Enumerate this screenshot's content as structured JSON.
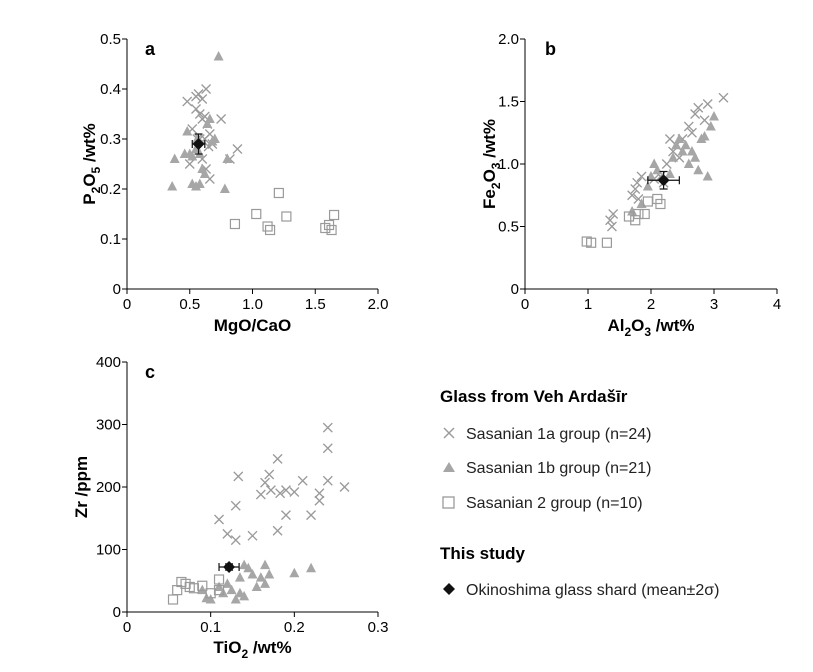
{
  "colors": {
    "cross": "#9a9a9a",
    "triangle": "#a6a6a6",
    "square": "#9a9a9a",
    "mean": "#111111",
    "axis": "#000000"
  },
  "legend": {
    "title1": "Glass from Veh Ardašīr",
    "title2": "This study",
    "items": [
      {
        "label": "Sasanian 1a group (n=24)",
        "marker": "cross"
      },
      {
        "label": "Sasanian 1b group (n=21)",
        "marker": "triangle"
      },
      {
        "label": "Sasanian 2 group (n=10)",
        "marker": "square"
      },
      {
        "label": "Okinoshima glass shard (mean±2σ)",
        "marker": "diamond"
      }
    ]
  },
  "chart_data": [
    {
      "panel": "a",
      "type": "scatter",
      "xlabel": {
        "main": "MgO/CaO",
        "sub": ""
      },
      "ylabel": {
        "parts": [
          "P",
          "2",
          "O",
          "5",
          " /wt%"
        ]
      },
      "xlim": [
        0,
        2.0
      ],
      "ylim": [
        0,
        0.5
      ],
      "xticks": [
        "0",
        "0.5",
        "1.0",
        "1.5",
        "2.0"
      ],
      "yticks": [
        "0",
        "0.1",
        "0.2",
        "0.3",
        "0.4",
        "0.5"
      ],
      "xtick_values": [
        0,
        0.5,
        1.0,
        1.5,
        2.0
      ],
      "ytick_values": [
        0,
        0.1,
        0.2,
        0.3,
        0.4,
        0.5
      ],
      "series": [
        {
          "marker": "cross",
          "points": [
            [
              0.48,
              0.375
            ],
            [
              0.55,
              0.385
            ],
            [
              0.57,
              0.39
            ],
            [
              0.6,
              0.38
            ],
            [
              0.62,
              0.345
            ],
            [
              0.63,
              0.4
            ],
            [
              0.55,
              0.36
            ],
            [
              0.58,
              0.35
            ],
            [
              0.6,
              0.34
            ],
            [
              0.64,
              0.33
            ],
            [
              0.66,
              0.31
            ],
            [
              0.52,
              0.32
            ],
            [
              0.56,
              0.3
            ],
            [
              0.58,
              0.3
            ],
            [
              0.62,
              0.3
            ],
            [
              0.65,
              0.285
            ],
            [
              0.68,
              0.29
            ],
            [
              0.6,
              0.26
            ],
            [
              0.5,
              0.25
            ],
            [
              0.63,
              0.24
            ],
            [
              0.66,
              0.22
            ],
            [
              0.82,
              0.26
            ],
            [
              0.88,
              0.28
            ],
            [
              0.75,
              0.34
            ]
          ]
        },
        {
          "marker": "triangle",
          "points": [
            [
              0.73,
              0.465
            ],
            [
              0.48,
              0.315
            ],
            [
              0.38,
              0.26
            ],
            [
              0.46,
              0.27
            ],
            [
              0.5,
              0.27
            ],
            [
              0.52,
              0.265
            ],
            [
              0.55,
              0.28
            ],
            [
              0.56,
              0.3
            ],
            [
              0.58,
              0.27
            ],
            [
              0.6,
              0.24
            ],
            [
              0.62,
              0.23
            ],
            [
              0.64,
              0.33
            ],
            [
              0.66,
              0.34
            ],
            [
              0.68,
              0.295
            ],
            [
              0.7,
              0.3
            ],
            [
              0.52,
              0.21
            ],
            [
              0.55,
              0.205
            ],
            [
              0.58,
              0.21
            ],
            [
              0.36,
              0.205
            ],
            [
              0.78,
              0.2
            ],
            [
              0.8,
              0.26
            ]
          ]
        },
        {
          "marker": "square",
          "points": [
            [
              0.86,
              0.13
            ],
            [
              1.03,
              0.15
            ],
            [
              1.12,
              0.125
            ],
            [
              1.14,
              0.118
            ],
            [
              1.21,
              0.192
            ],
            [
              1.27,
              0.145
            ],
            [
              1.58,
              0.122
            ],
            [
              1.61,
              0.128
            ],
            [
              1.63,
              0.118
            ],
            [
              1.65,
              0.148
            ]
          ]
        }
      ],
      "mean": {
        "x": 0.57,
        "y": 0.29,
        "xerr": 0.05,
        "yerr": 0.02
      }
    },
    {
      "panel": "b",
      "type": "scatter",
      "xlabel": {
        "parts": [
          "Al",
          "2",
          "O",
          "3",
          " /wt%"
        ]
      },
      "ylabel": {
        "parts": [
          "Fe",
          "2",
          "O",
          "3",
          " /wt%"
        ]
      },
      "xlim": [
        0,
        4
      ],
      "ylim": [
        0,
        2.0
      ],
      "xticks": [
        "0",
        "1",
        "2",
        "3",
        "4"
      ],
      "yticks": [
        "0",
        "0.5",
        "1.0",
        "1.5",
        "2.0"
      ],
      "xtick_values": [
        0,
        1,
        2,
        3,
        4
      ],
      "ytick_values": [
        0,
        0.5,
        1.0,
        1.5,
        2.0
      ],
      "series": [
        {
          "marker": "cross",
          "points": [
            [
              1.35,
              0.55
            ],
            [
              1.4,
              0.6
            ],
            [
              1.38,
              0.5
            ],
            [
              1.7,
              0.75
            ],
            [
              1.75,
              0.8
            ],
            [
              1.78,
              0.85
            ],
            [
              1.85,
              0.9
            ],
            [
              1.8,
              0.72
            ],
            [
              2.05,
              0.88
            ],
            [
              2.15,
              0.9
            ],
            [
              2.2,
              0.85
            ],
            [
              2.25,
              1.0
            ],
            [
              2.3,
              1.2
            ],
            [
              2.35,
              1.1
            ],
            [
              2.4,
              1.15
            ],
            [
              2.45,
              1.05
            ],
            [
              2.5,
              1.2
            ],
            [
              2.6,
              1.3
            ],
            [
              2.65,
              1.25
            ],
            [
              2.7,
              1.4
            ],
            [
              2.75,
              1.45
            ],
            [
              2.85,
              1.35
            ],
            [
              2.9,
              1.48
            ],
            [
              3.15,
              1.53
            ]
          ]
        },
        {
          "marker": "triangle",
          "points": [
            [
              1.7,
              0.62
            ],
            [
              1.85,
              0.68
            ],
            [
              1.95,
              0.82
            ],
            [
              2.0,
              0.9
            ],
            [
              2.05,
              1.0
            ],
            [
              2.1,
              0.95
            ],
            [
              2.3,
              0.92
            ],
            [
              2.35,
              1.05
            ],
            [
              2.5,
              1.1
            ],
            [
              2.6,
              1.0
            ],
            [
              2.65,
              1.1
            ],
            [
              2.7,
              1.05
            ],
            [
              2.75,
              0.95
            ],
            [
              2.8,
              1.2
            ],
            [
              2.85,
              1.22
            ],
            [
              2.9,
              0.9
            ],
            [
              2.95,
              1.3
            ],
            [
              3.0,
              1.38
            ],
            [
              2.55,
              1.15
            ],
            [
              2.45,
              1.2
            ],
            [
              2.4,
              1.15
            ]
          ]
        },
        {
          "marker": "square",
          "points": [
            [
              0.98,
              0.38
            ],
            [
              1.05,
              0.37
            ],
            [
              1.3,
              0.37
            ],
            [
              1.65,
              0.58
            ],
            [
              1.75,
              0.55
            ],
            [
              1.8,
              0.6
            ],
            [
              1.9,
              0.6
            ],
            [
              1.95,
              0.7
            ],
            [
              2.1,
              0.72
            ],
            [
              2.15,
              0.68
            ]
          ]
        }
      ],
      "mean": {
        "x": 2.2,
        "y": 0.87,
        "xerr": 0.25,
        "yerr": 0.07
      }
    },
    {
      "panel": "c",
      "type": "scatter",
      "xlabel": {
        "parts": [
          "TiO",
          "2",
          " /wt%"
        ]
      },
      "ylabel": {
        "parts": [
          "Zr /ppm"
        ]
      },
      "xlim": [
        0,
        0.3
      ],
      "ylim": [
        0,
        400
      ],
      "xticks": [
        "0",
        "0.1",
        "0.2",
        "0.3"
      ],
      "yticks": [
        "0",
        "100",
        "200",
        "300",
        "400"
      ],
      "xtick_values": [
        0,
        0.1,
        0.2,
        0.3
      ],
      "ytick_values": [
        0,
        100,
        200,
        300,
        400
      ],
      "series": [
        {
          "marker": "cross",
          "points": [
            [
              0.11,
              148
            ],
            [
              0.12,
              125
            ],
            [
              0.13,
              115
            ],
            [
              0.13,
              170
            ],
            [
              0.133,
              217
            ],
            [
              0.15,
              122
            ],
            [
              0.16,
              188
            ],
            [
              0.165,
              207
            ],
            [
              0.17,
              220
            ],
            [
              0.172,
              195
            ],
            [
              0.18,
              245
            ],
            [
              0.183,
              190
            ],
            [
              0.19,
              195
            ],
            [
              0.19,
              155
            ],
            [
              0.2,
              192
            ],
            [
              0.21,
              210
            ],
            [
              0.22,
              155
            ],
            [
              0.23,
              178
            ],
            [
              0.23,
              190
            ],
            [
              0.24,
              262
            ],
            [
              0.24,
              295
            ],
            [
              0.24,
              210
            ],
            [
              0.26,
              200
            ],
            [
              0.18,
              130
            ]
          ]
        },
        {
          "marker": "triangle",
          "points": [
            [
              0.09,
              35
            ],
            [
              0.095,
              22
            ],
            [
              0.1,
              20
            ],
            [
              0.11,
              40
            ],
            [
              0.115,
              30
            ],
            [
              0.12,
              45
            ],
            [
              0.125,
              35
            ],
            [
              0.13,
              20
            ],
            [
              0.135,
              30
            ],
            [
              0.14,
              25
            ],
            [
              0.14,
              75
            ],
            [
              0.145,
              70
            ],
            [
              0.15,
              60
            ],
            [
              0.155,
              40
            ],
            [
              0.16,
              55
            ],
            [
              0.165,
              45
            ],
            [
              0.165,
              75
            ],
            [
              0.17,
              60
            ],
            [
              0.2,
              62
            ],
            [
              0.22,
              70
            ],
            [
              0.135,
              55
            ]
          ]
        },
        {
          "marker": "square",
          "points": [
            [
              0.055,
              20
            ],
            [
              0.06,
              35
            ],
            [
              0.065,
              48
            ],
            [
              0.07,
              45
            ],
            [
              0.075,
              40
            ],
            [
              0.08,
              38
            ],
            [
              0.09,
              42
            ],
            [
              0.1,
              30
            ],
            [
              0.11,
              52
            ],
            [
              0.11,
              35
            ]
          ]
        }
      ],
      "mean": {
        "x": 0.122,
        "y": 72,
        "xerr": 0.012,
        "yerr": 5
      }
    }
  ]
}
